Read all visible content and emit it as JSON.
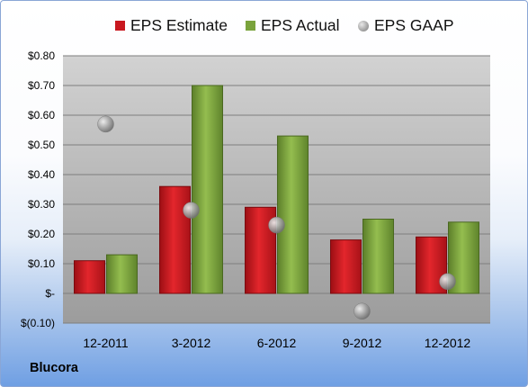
{
  "chart_data": {
    "type": "bar",
    "categories": [
      "12-2011",
      "3-2012",
      "6-2012",
      "9-2012",
      "12-2012"
    ],
    "series": [
      {
        "name": "EPS Estimate",
        "type": "bar",
        "color": "#c8181f",
        "values": [
          0.11,
          0.36,
          0.29,
          0.18,
          0.19
        ]
      },
      {
        "name": "EPS Actual",
        "type": "bar",
        "color": "#7aa33c",
        "values": [
          0.13,
          0.7,
          0.53,
          0.25,
          0.24
        ]
      },
      {
        "name": "EPS GAAP",
        "type": "scatter",
        "color": "#9a9a9a",
        "values": [
          0.57,
          0.28,
          0.23,
          -0.06,
          0.04
        ]
      }
    ],
    "ylim": [
      -0.1,
      0.8
    ],
    "yticks": [
      0.8,
      0.7,
      0.6,
      0.5,
      0.4,
      0.3,
      0.2,
      0.1,
      0,
      -0.1
    ],
    "ytick_labels": [
      "$0.80",
      "$0.70",
      "$0.60",
      "$0.50",
      "$0.40",
      "$0.30",
      "$0.20",
      "$0.10",
      "$-",
      "$(0.10)"
    ],
    "grid": true,
    "legend": "top"
  },
  "legend": {
    "estimate": "EPS Estimate",
    "actual": "EPS Actual",
    "gaap": "EPS GAAP"
  },
  "company": "Blucora"
}
